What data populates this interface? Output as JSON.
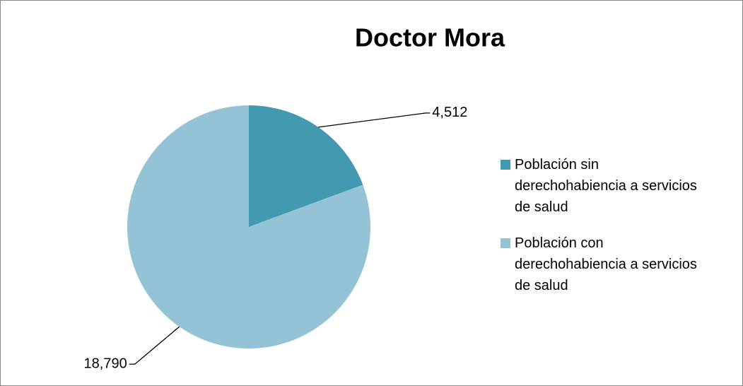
{
  "chart_data": {
    "type": "pie",
    "title": "Doctor Mora",
    "categories": [
      "Población sin derechohabiencia a servicios de salud",
      "Población con derechohabiencia a servicios de salud"
    ],
    "values": [
      4512,
      18790
    ],
    "value_labels": [
      "4,512",
      "18,790"
    ],
    "colors": [
      "#4299b0",
      "#93c3d4"
    ],
    "legend": "right"
  }
}
